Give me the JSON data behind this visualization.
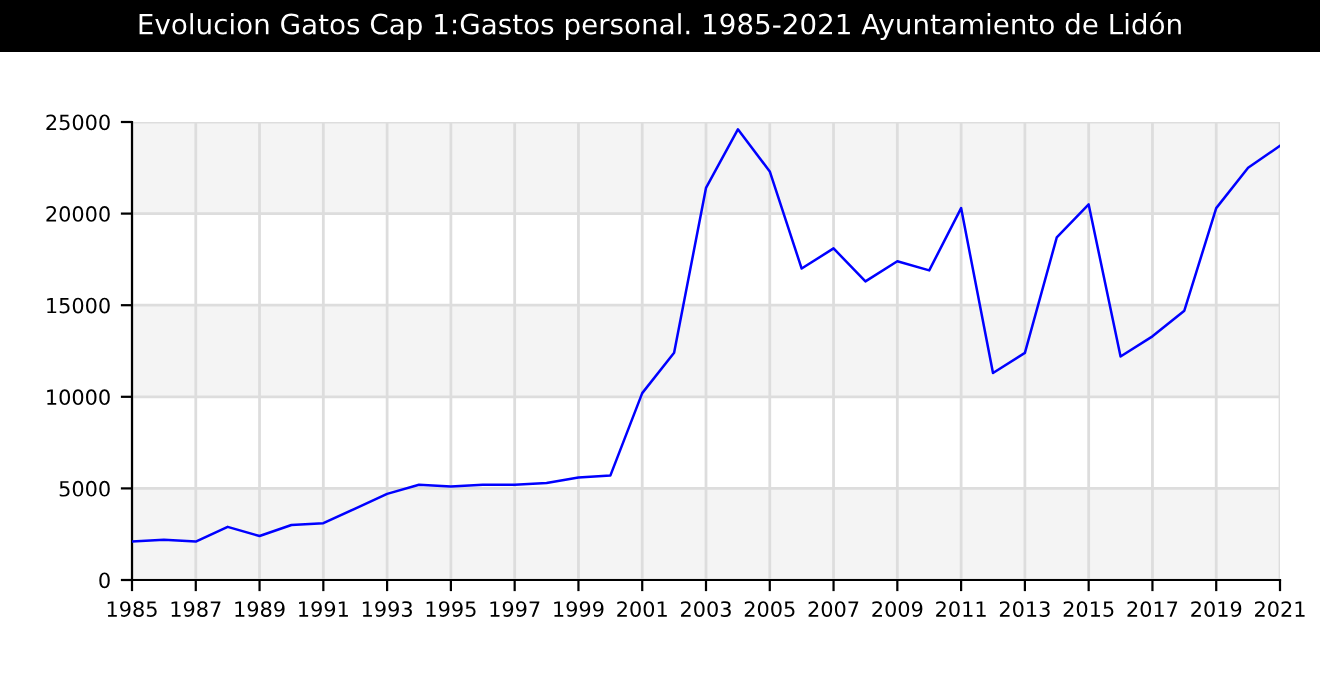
{
  "chart_data": {
    "type": "line",
    "title": "Evolucion Gatos Cap 1:Gastos personal. 1985-2021 Ayuntamiento de Lidón",
    "x": [
      1985,
      1986,
      1987,
      1988,
      1989,
      1990,
      1991,
      1992,
      1993,
      1994,
      1995,
      1996,
      1997,
      1998,
      1999,
      2000,
      2001,
      2002,
      2003,
      2004,
      2005,
      2006,
      2007,
      2008,
      2009,
      2010,
      2011,
      2012,
      2013,
      2014,
      2015,
      2016,
      2017,
      2018,
      2019,
      2020,
      2021
    ],
    "series": [
      {
        "color": "#0000ff",
        "values": [
          2100,
          2200,
          2100,
          2900,
          2400,
          3000,
          3100,
          3900,
          4700,
          5200,
          5100,
          5200,
          5200,
          5300,
          5600,
          5700,
          10200,
          12400,
          21400,
          24600,
          22300,
          17000,
          18100,
          16300,
          17400,
          16900,
          20300,
          11300,
          12400,
          18700,
          20500,
          12200,
          13300,
          14700,
          20300,
          22500,
          23700
        ]
      }
    ],
    "xlim": [
      1985,
      2021
    ],
    "xticks": [
      1985,
      1987,
      1989,
      1991,
      1993,
      1995,
      1997,
      1999,
      2001,
      2003,
      2005,
      2007,
      2009,
      2011,
      2013,
      2015,
      2017,
      2019,
      2021
    ],
    "ylim": [
      0,
      25000
    ],
    "yticks": [
      0,
      5000,
      10000,
      15000,
      20000,
      25000
    ],
    "bands": [
      {
        "axis": "y",
        "from": 0,
        "to": 5000,
        "color": "#f4f4f4"
      },
      {
        "axis": "y",
        "from": 10000,
        "to": 15000,
        "color": "#f4f4f4"
      },
      {
        "axis": "y",
        "from": 20000,
        "to": 25000,
        "color": "#f4f4f4"
      }
    ],
    "grid": true,
    "marker": "none",
    "line_style": "solid"
  }
}
